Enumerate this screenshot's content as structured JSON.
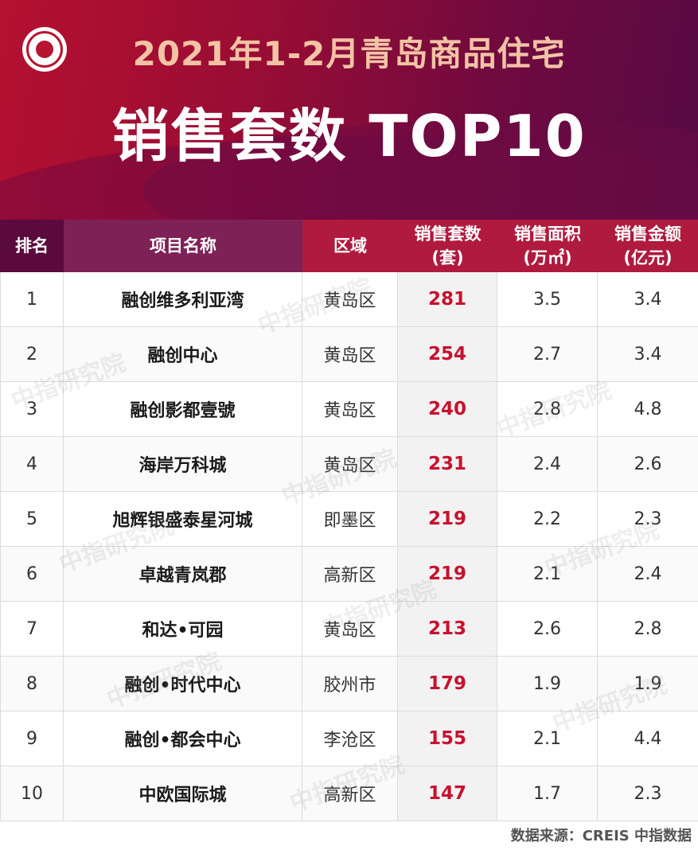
{
  "header": {
    "title_line1": "2021年1-2月青岛商品住宅",
    "title_line2": "销售套数 TOP10",
    "logo": "creis-index-academy-logo"
  },
  "table": {
    "columns": {
      "rank": "排名",
      "project": "项目名称",
      "district": "区域",
      "units_line1": "销售套数",
      "units_line2": "(套)",
      "area_line1": "销售面积",
      "area_line2": "(万㎡)",
      "amount_line1": "销售金额",
      "amount_line2": "(亿元)"
    },
    "rows": [
      {
        "rank": "1",
        "project": "融创维多利亚湾",
        "district": "黄岛区",
        "units": "281",
        "area": "3.5",
        "amount": "3.4"
      },
      {
        "rank": "2",
        "project": "融创中心",
        "district": "黄岛区",
        "units": "254",
        "area": "2.7",
        "amount": "3.4"
      },
      {
        "rank": "3",
        "project": "融创影都壹號",
        "district": "黄岛区",
        "units": "240",
        "area": "2.8",
        "amount": "4.8"
      },
      {
        "rank": "4",
        "project": "海岸万科城",
        "district": "黄岛区",
        "units": "231",
        "area": "2.4",
        "amount": "2.6"
      },
      {
        "rank": "5",
        "project": "旭辉银盛泰星河城",
        "district": "即墨区",
        "units": "219",
        "area": "2.2",
        "amount": "2.3"
      },
      {
        "rank": "6",
        "project": "卓越青岚郡",
        "district": "高新区",
        "units": "219",
        "area": "2.1",
        "amount": "2.4"
      },
      {
        "rank": "7",
        "project": "和达•可园",
        "district": "黄岛区",
        "units": "213",
        "area": "2.6",
        "amount": "2.8"
      },
      {
        "rank": "8",
        "project": "融创•时代中心",
        "district": "胶州市",
        "units": "179",
        "area": "1.9",
        "amount": "1.9"
      },
      {
        "rank": "9",
        "project": "融创•都会中心",
        "district": "李沧区",
        "units": "155",
        "area": "2.1",
        "amount": "4.4"
      },
      {
        "rank": "10",
        "project": "中欧国际城",
        "district": "高新区",
        "units": "147",
        "area": "1.7",
        "amount": "2.3"
      }
    ]
  },
  "watermark": "中指研究院",
  "footer": {
    "source": "数据来源：CREIS 中指数据"
  },
  "colors": {
    "accent_red": "#c8102e",
    "header_dark": "#5a0a3c",
    "header_purple": "#7e2156",
    "header_red": "#b01a3e",
    "title_gold": "#f3c3a5"
  }
}
